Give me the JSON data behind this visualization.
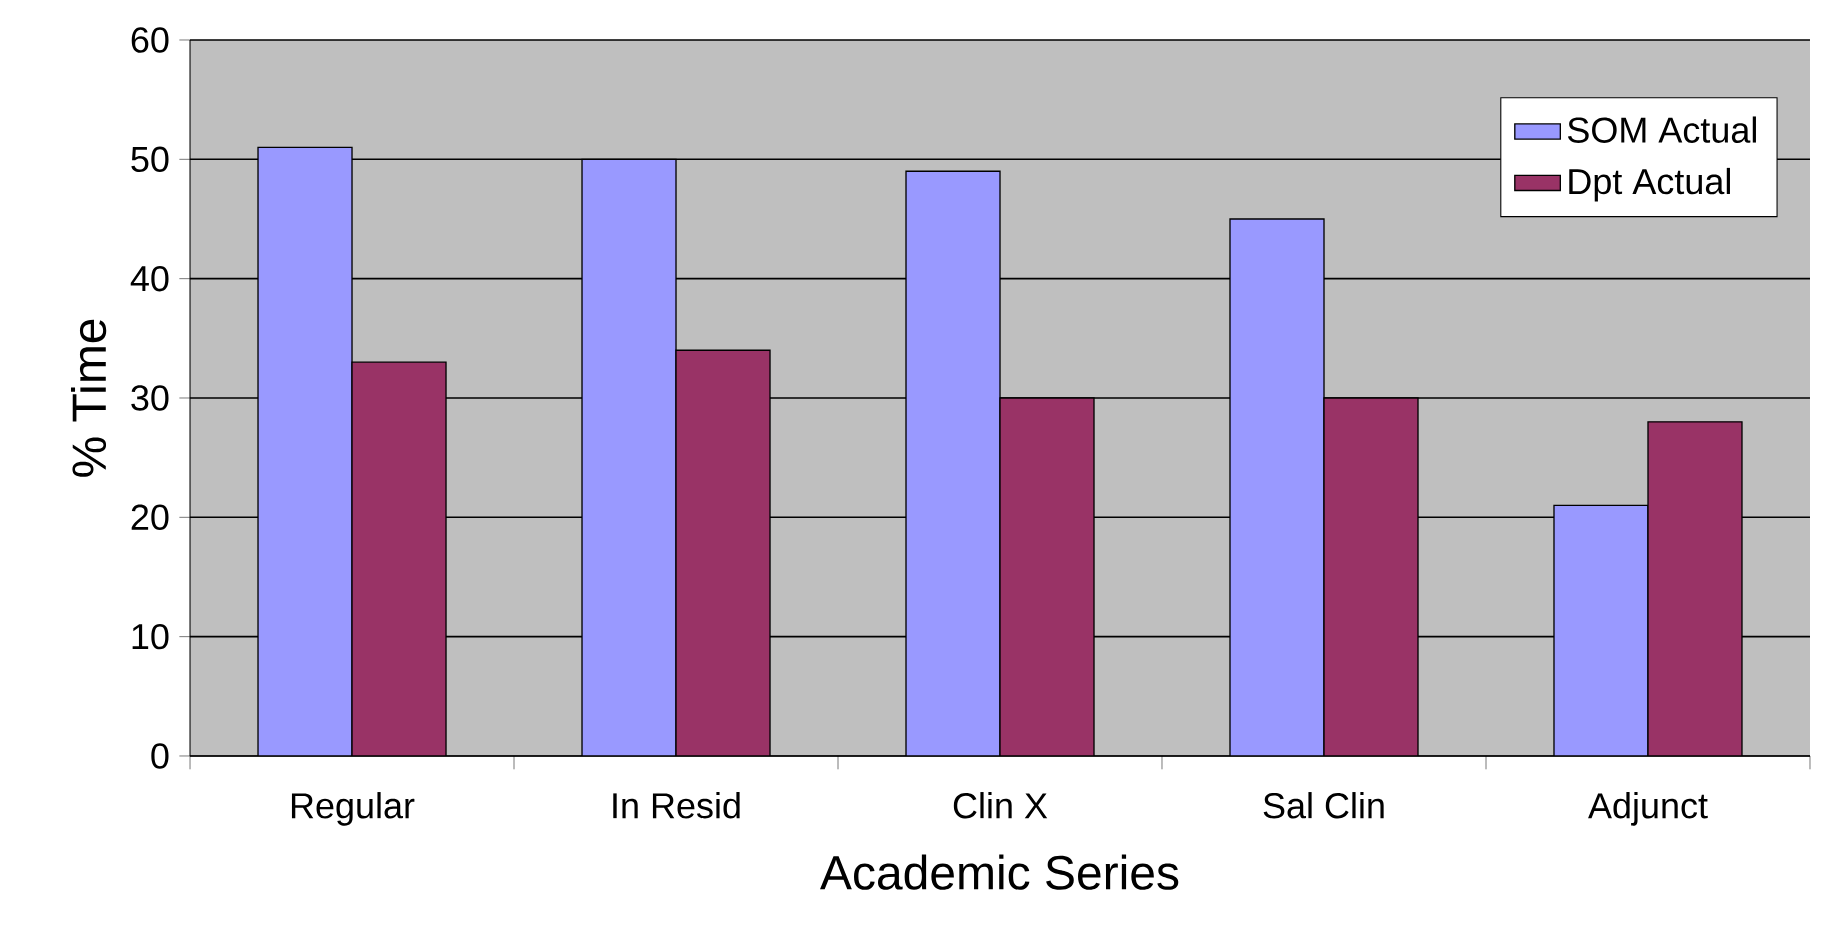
{
  "chart_data": {
    "type": "bar",
    "xlabel": "Academic Series",
    "ylabel": "% Time",
    "categories": [
      "Regular",
      "In Resid",
      "Clin X",
      "Sal Clin",
      "Adjunct"
    ],
    "series": [
      {
        "name": "SOM Actual",
        "color": "#9999ff",
        "values": [
          51,
          50,
          49,
          45,
          21
        ]
      },
      {
        "name": "Dpt Actual",
        "color": "#993366",
        "values": [
          33,
          34,
          30,
          30,
          28
        ]
      }
    ],
    "ylim": [
      0,
      60
    ],
    "yticks": [
      0,
      10,
      20,
      30,
      40,
      50,
      60
    ],
    "grid": "y",
    "legend": "top right"
  }
}
